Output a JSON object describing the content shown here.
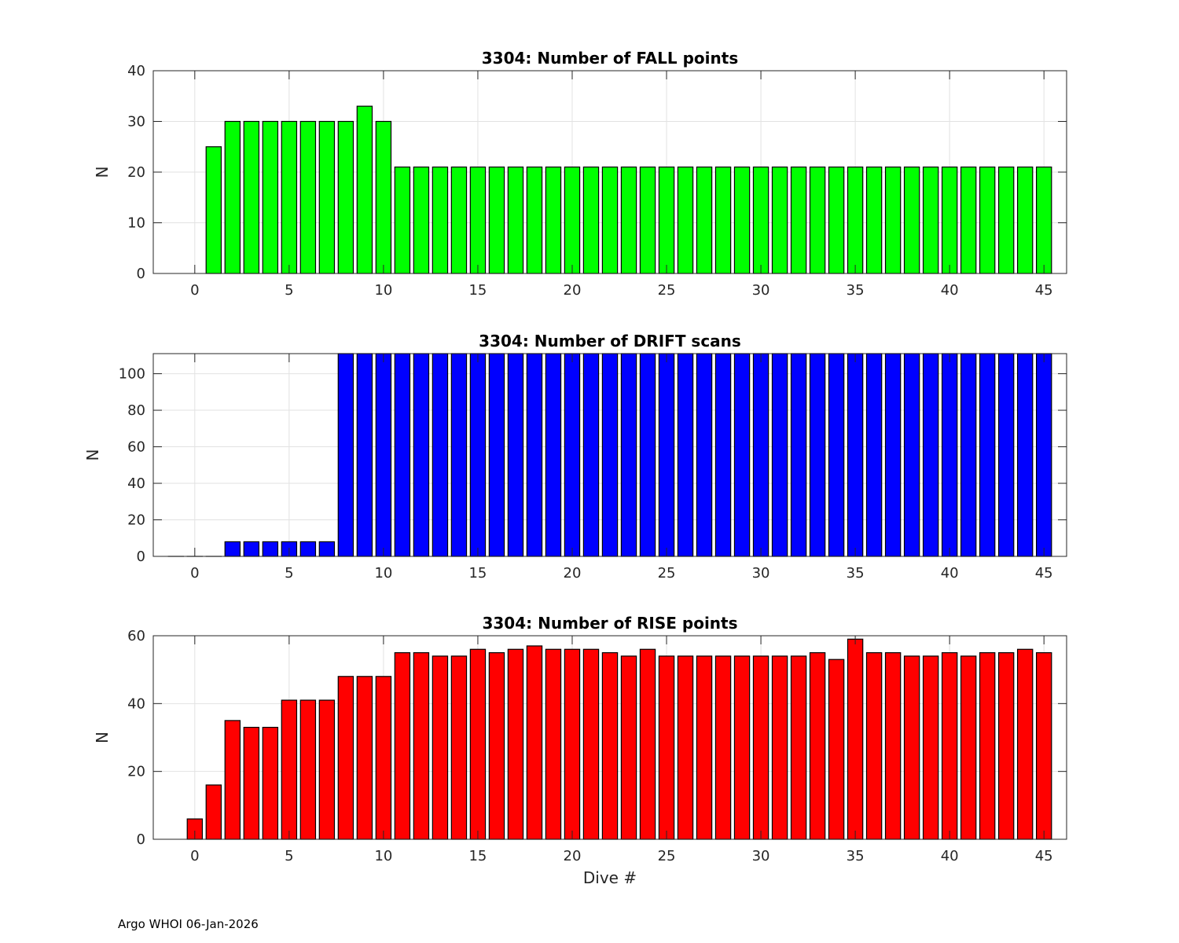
{
  "footer": "Argo WHOI 06-Jan-2026",
  "chart_data": [
    {
      "type": "bar",
      "title": "3304: Number of FALL points",
      "xlabel": "",
      "ylabel": "N",
      "color": "#00ff00",
      "xlim": [
        -2.2,
        46.2
      ],
      "ylim": [
        0,
        40
      ],
      "xticks": [
        0,
        5,
        10,
        15,
        20,
        25,
        30,
        35,
        40,
        45
      ],
      "yticks": [
        0,
        10,
        20,
        30,
        40
      ],
      "grid": true,
      "x": [
        1,
        2,
        3,
        4,
        5,
        6,
        7,
        8,
        9,
        10,
        11,
        12,
        13,
        14,
        15,
        16,
        17,
        18,
        19,
        20,
        21,
        22,
        23,
        24,
        25,
        26,
        27,
        28,
        29,
        30,
        31,
        32,
        33,
        34,
        35,
        36,
        37,
        38,
        39,
        40,
        41,
        42,
        43,
        44,
        45
      ],
      "values": [
        25,
        30,
        30,
        30,
        30,
        30,
        30,
        30,
        33,
        30,
        21,
        21,
        21,
        21,
        21,
        21,
        21,
        21,
        21,
        21,
        21,
        21,
        21,
        21,
        21,
        21,
        21,
        21,
        21,
        21,
        21,
        21,
        21,
        21,
        21,
        21,
        21,
        21,
        21,
        21,
        21,
        21,
        21,
        21,
        21
      ]
    },
    {
      "type": "bar",
      "title": "3304: Number of DRIFT scans",
      "xlabel": "",
      "ylabel": "N",
      "color": "#0000ff",
      "xlim": [
        -2.2,
        46.2
      ],
      "ylim": [
        0,
        111
      ],
      "xticks": [
        0,
        5,
        10,
        15,
        20,
        25,
        30,
        35,
        40,
        45
      ],
      "yticks": [
        0,
        20,
        40,
        60,
        80,
        100
      ],
      "grid": true,
      "x": [
        -1,
        0,
        1,
        2,
        3,
        4,
        5,
        6,
        7,
        8,
        9,
        10,
        11,
        12,
        13,
        14,
        15,
        16,
        17,
        18,
        19,
        20,
        21,
        22,
        23,
        24,
        25,
        26,
        27,
        28,
        29,
        30,
        31,
        32,
        33,
        34,
        35,
        36,
        37,
        38,
        39,
        40,
        41,
        42,
        43,
        44,
        45
      ],
      "values": [
        0,
        0,
        0,
        8,
        8,
        8,
        8,
        8,
        8,
        111,
        111,
        111,
        111,
        111,
        111,
        111,
        111,
        111,
        111,
        111,
        111,
        111,
        111,
        111,
        111,
        111,
        111,
        111,
        111,
        111,
        111,
        111,
        111,
        111,
        111,
        111,
        111,
        111,
        111,
        111,
        111,
        111,
        111,
        111,
        111,
        111,
        111
      ]
    },
    {
      "type": "bar",
      "title": "3304: Number of RISE points",
      "xlabel": "Dive #",
      "ylabel": "N",
      "color": "#ff0000",
      "xlim": [
        -2.2,
        46.2
      ],
      "ylim": [
        0,
        60
      ],
      "xticks": [
        0,
        5,
        10,
        15,
        20,
        25,
        30,
        35,
        40,
        45
      ],
      "yticks": [
        0,
        20,
        40,
        60
      ],
      "grid": true,
      "x": [
        0,
        1,
        2,
        3,
        4,
        5,
        6,
        7,
        8,
        9,
        10,
        11,
        12,
        13,
        14,
        15,
        16,
        17,
        18,
        19,
        20,
        21,
        22,
        23,
        24,
        25,
        26,
        27,
        28,
        29,
        30,
        31,
        32,
        33,
        34,
        35,
        36,
        37,
        38,
        39,
        40,
        41,
        42,
        43,
        44,
        45
      ],
      "values": [
        6,
        16,
        35,
        33,
        33,
        41,
        41,
        41,
        48,
        48,
        48,
        55,
        55,
        54,
        54,
        56,
        55,
        56,
        57,
        56,
        56,
        56,
        55,
        54,
        56,
        54,
        54,
        54,
        54,
        54,
        54,
        54,
        54,
        55,
        53,
        59,
        55,
        55,
        54,
        54,
        55,
        54,
        55,
        55,
        56,
        55
      ]
    }
  ]
}
